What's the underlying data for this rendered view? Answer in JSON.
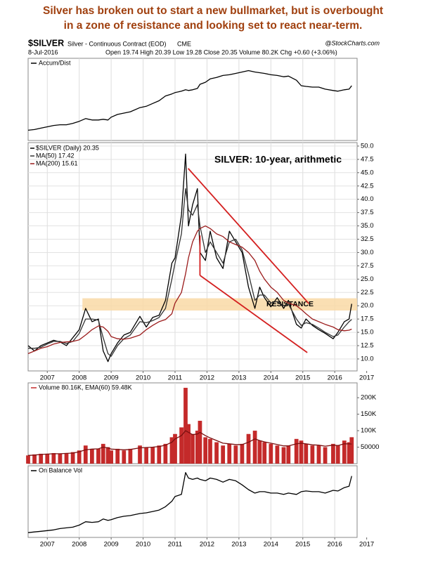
{
  "header": {
    "lines": [
      "Silver has broken out to start a new bullmarket, but is overbought",
      "in a zone of resistance and looking set to react near-term."
    ],
    "symbol": "$SILVER",
    "description": "Silver - Continuous Contract (EOD)",
    "exchange": "CME",
    "source": "@StockCharts.com",
    "date": "8-Jul-2016",
    "quote": "Open 19.74 High 20.39 Low 19.28 Close 20.35 Volume 80.2K Chg +0.60 (+3.06%)"
  },
  "chart_data": [
    {
      "type": "line",
      "label": "Accum/Dist",
      "xlim": [
        2006.4,
        2016.7
      ],
      "ylim": [
        -10,
        110
      ],
      "x": [
        2006.4,
        2006.6,
        2006.8,
        2007.0,
        2007.2,
        2007.4,
        2007.6,
        2007.8,
        2008.0,
        2008.2,
        2008.4,
        2008.6,
        2008.75,
        2008.9,
        2009.0,
        2009.2,
        2009.4,
        2009.6,
        2009.9,
        2010.1,
        2010.3,
        2010.5,
        2010.7,
        2010.9,
        2011.0,
        2011.2,
        2011.33,
        2011.42,
        2011.55,
        2011.7,
        2011.78,
        2011.95,
        2012.1,
        2012.3,
        2012.5,
        2012.7,
        2012.9,
        2013.1,
        2013.3,
        2013.5,
        2013.65,
        2013.8,
        2014.0,
        2014.2,
        2014.4,
        2014.55,
        2014.8,
        2014.95,
        2015.1,
        2015.3,
        2015.5,
        2015.7,
        2015.95,
        2016.1,
        2016.3,
        2016.45,
        2016.53
      ],
      "series": [
        {
          "color": "#000000",
          "values": [
            5,
            6,
            8,
            10,
            12,
            13,
            13,
            15,
            18,
            22,
            20,
            20,
            21,
            20,
            24,
            28,
            30,
            32,
            38,
            40,
            44,
            48,
            55,
            58,
            60,
            62,
            64,
            63,
            64,
            66,
            72,
            75,
            80,
            82,
            85,
            86,
            88,
            90,
            92,
            90,
            89,
            88,
            86,
            85,
            83,
            84,
            78,
            70,
            69,
            68,
            68,
            65,
            63,
            62,
            64,
            65,
            70
          ]
        }
      ]
    },
    {
      "type": "line",
      "subtitle": "SILVER: 10-year, arithmetic",
      "xlim": [
        2006.4,
        2016.7
      ],
      "ylim": [
        7.75,
        50.65
      ],
      "grid": true,
      "xticks": [
        2007,
        2008,
        2009,
        2010,
        2011,
        2012,
        2013,
        2014,
        2015,
        2016,
        2017
      ],
      "yticks": [
        {
          "value": 10,
          "label": "10.0"
        },
        12.5,
        {
          "value": 15,
          "label": "15.0"
        },
        17.5,
        {
          "value": 20,
          "label": "20.0"
        },
        22.5,
        {
          "value": 25,
          "label": "25.0"
        },
        27.5,
        {
          "value": 30,
          "label": "30.0"
        },
        32.5,
        {
          "value": 35,
          "label": "35.0"
        },
        37.5,
        {
          "value": 40,
          "label": "40.0"
        },
        42.5,
        {
          "value": 45,
          "label": "45.0"
        },
        47.5,
        {
          "value": 50,
          "label": "50.0"
        }
      ],
      "x": [
        2006.4,
        2006.6,
        2006.8,
        2007.0,
        2007.2,
        2007.4,
        2007.6,
        2007.8,
        2008.0,
        2008.2,
        2008.4,
        2008.6,
        2008.75,
        2008.9,
        2009.0,
        2009.2,
        2009.4,
        2009.6,
        2009.9,
        2010.1,
        2010.3,
        2010.5,
        2010.7,
        2010.9,
        2011.0,
        2011.2,
        2011.33,
        2011.42,
        2011.55,
        2011.7,
        2011.78,
        2011.95,
        2012.1,
        2012.3,
        2012.5,
        2012.7,
        2012.9,
        2013.1,
        2013.3,
        2013.5,
        2013.65,
        2013.8,
        2014.0,
        2014.2,
        2014.4,
        2014.55,
        2014.8,
        2014.95,
        2015.1,
        2015.3,
        2015.5,
        2015.7,
        2015.95,
        2016.1,
        2016.3,
        2016.45,
        2016.53
      ],
      "series": [
        {
          "name": "$SILVER (Daily) 20.35",
          "color": "#000000",
          "values": [
            12.5,
            11.5,
            12.5,
            13.0,
            13.5,
            13.2,
            12.5,
            14.0,
            15.5,
            19.5,
            17.0,
            17.5,
            11.5,
            9.5,
            11.0,
            13.0,
            14.5,
            15.0,
            18.0,
            16.0,
            17.8,
            18.2,
            21.0,
            28.0,
            29.0,
            37.0,
            48.5,
            35.0,
            39.0,
            42.0,
            30.0,
            28.5,
            34.0,
            29.0,
            27.0,
            34.0,
            32.0,
            30.0,
            23.5,
            19.5,
            23.5,
            21.5,
            19.8,
            21.5,
            19.5,
            21.0,
            16.5,
            15.8,
            17.5,
            16.3,
            15.5,
            14.8,
            13.8,
            15.0,
            17.0,
            17.5,
            20.35
          ]
        },
        {
          "name": "MA(50) 17.42",
          "color": "#333333",
          "values": [
            12,
            12,
            12.2,
            12.8,
            13.3,
            13.3,
            12.9,
            13.3,
            14.8,
            17.5,
            17.5,
            17.3,
            14,
            11,
            10.5,
            12.5,
            13.8,
            14.5,
            17,
            16.8,
            17.2,
            17.8,
            19.5,
            25,
            28,
            33.5,
            42,
            38,
            37,
            39,
            35,
            30,
            32,
            30,
            28,
            32,
            32.5,
            30.5,
            26,
            21,
            22,
            22,
            20.5,
            20.8,
            20,
            20.3,
            17.5,
            16.3,
            16.8,
            16.5,
            15.8,
            15,
            14.2,
            14.5,
            16,
            17,
            17.42
          ]
        },
        {
          "name": "MA(200) 15.61",
          "color": "#9b1c1c",
          "values": [
            11,
            11.5,
            12,
            12.3,
            12.8,
            13.1,
            13.2,
            13.3,
            13.6,
            14.5,
            15.5,
            16.2,
            16.0,
            15.2,
            14.2,
            13.8,
            13.7,
            13.9,
            14.5,
            15.5,
            16.3,
            17.0,
            17.4,
            18.5,
            20.5,
            22.5,
            26.0,
            29.0,
            32,
            34,
            34.5,
            35,
            34.5,
            33.5,
            33,
            32,
            31.5,
            31,
            30,
            28.5,
            26.5,
            25,
            23.5,
            22.5,
            21,
            20.5,
            20,
            19.3,
            18.5,
            17.5,
            17,
            16.5,
            16,
            15.5,
            15.3,
            15.4,
            15.61
          ]
        }
      ],
      "band": {
        "x": [
          2008.1,
          2016.7
        ],
        "y": [
          19.1,
          21.4
        ],
        "label": "RESISTANCE",
        "color": "#f9d9a6"
      },
      "trendlines": {
        "color": "#d42020",
        "lines": [
          {
            "x": [
              2011.41,
              2015.19
            ],
            "y": [
              45.8,
              20.4
            ]
          },
          {
            "x": [
              2011.78,
              2015.14
            ],
            "y": [
              25.7,
              11.2
            ]
          },
          {
            "x": [
              2011.78,
              2011.78
            ],
            "y": [
              33.2,
              25.7
            ]
          }
        ]
      }
    },
    {
      "type": "bar",
      "label": "Volume 80.16K, EMA(60) 59.48K",
      "xlim": [
        2006.4,
        2016.7
      ],
      "ylim": [
        0,
        245000
      ],
      "yticks": [
        50000,
        {
          "value": 100000,
          "label": "100K"
        },
        {
          "value": 150000,
          "label": "150K"
        },
        {
          "value": 200000,
          "label": "200K"
        }
      ],
      "x": [
        2006.4,
        2006.6,
        2006.8,
        2007.0,
        2007.2,
        2007.4,
        2007.6,
        2007.8,
        2008.0,
        2008.2,
        2008.4,
        2008.6,
        2008.75,
        2008.9,
        2009.0,
        2009.2,
        2009.4,
        2009.6,
        2009.9,
        2010.1,
        2010.3,
        2010.5,
        2010.7,
        2010.9,
        2011.0,
        2011.2,
        2011.33,
        2011.42,
        2011.55,
        2011.7,
        2011.78,
        2011.95,
        2012.1,
        2012.3,
        2012.5,
        2012.7,
        2012.9,
        2013.1,
        2013.3,
        2013.5,
        2013.65,
        2013.8,
        2014.0,
        2014.2,
        2014.4,
        2014.55,
        2014.8,
        2014.95,
        2015.1,
        2015.3,
        2015.5,
        2015.7,
        2015.95,
        2016.1,
        2016.3,
        2016.45,
        2016.53
      ],
      "series": [
        {
          "type": "bar",
          "color": "#c42a2a",
          "values": [
            25000,
            28000,
            30000,
            30000,
            32000,
            30000,
            32000,
            35000,
            40000,
            55000,
            45000,
            45000,
            60000,
            50000,
            40000,
            45000,
            40000,
            45000,
            55000,
            50000,
            50000,
            55000,
            60000,
            80000,
            90000,
            110000,
            230000,
            120000,
            90000,
            100000,
            130000,
            80000,
            75000,
            65000,
            55000,
            60000,
            55000,
            60000,
            90000,
            100000,
            70000,
            65000,
            60000,
            55000,
            50000,
            55000,
            75000,
            70000,
            60000,
            55000,
            55000,
            50000,
            60000,
            55000,
            70000,
            65000,
            80160
          ]
        },
        {
          "type": "line",
          "color": "#7a1010",
          "values": [
            25000,
            26000,
            28000,
            29000,
            30000,
            30000,
            31000,
            32000,
            36000,
            42000,
            44000,
            45000,
            50000,
            48000,
            44000,
            43000,
            42000,
            43000,
            48000,
            49000,
            50000,
            52000,
            56000,
            65000,
            75000,
            85000,
            100000,
            95000,
            88000,
            90000,
            95000,
            85000,
            78000,
            70000,
            62000,
            60000,
            58000,
            58000,
            65000,
            75000,
            70000,
            66000,
            62000,
            58000,
            54000,
            54000,
            60000,
            62000,
            60000,
            57000,
            56000,
            53000,
            56000,
            55000,
            60000,
            60000,
            59480
          ]
        }
      ]
    },
    {
      "type": "line",
      "label": "On Balance Vol",
      "xlim": [
        2006.4,
        2016.7
      ],
      "ylim": [
        -5,
        100
      ],
      "xticks": [
        2007,
        2008,
        2009,
        2010,
        2011,
        2012,
        2013,
        2014,
        2015,
        2016,
        2017
      ],
      "x": [
        2006.4,
        2006.6,
        2006.8,
        2007.0,
        2007.2,
        2007.4,
        2007.6,
        2007.8,
        2008.0,
        2008.2,
        2008.4,
        2008.6,
        2008.75,
        2008.9,
        2009.0,
        2009.2,
        2009.4,
        2009.6,
        2009.9,
        2010.1,
        2010.3,
        2010.5,
        2010.7,
        2010.9,
        2011.0,
        2011.2,
        2011.33,
        2011.42,
        2011.55,
        2011.7,
        2011.78,
        2011.95,
        2012.1,
        2012.3,
        2012.5,
        2012.7,
        2012.9,
        2013.1,
        2013.3,
        2013.5,
        2013.65,
        2013.8,
        2014.0,
        2014.2,
        2014.4,
        2014.55,
        2014.8,
        2014.95,
        2015.1,
        2015.3,
        2015.5,
        2015.7,
        2015.95,
        2016.1,
        2016.3,
        2016.45,
        2016.53
      ],
      "series": [
        {
          "color": "#000000",
          "values": [
            2,
            3,
            4,
            5,
            6,
            8,
            9,
            10,
            13,
            18,
            17,
            18,
            22,
            20,
            21,
            24,
            26,
            27,
            30,
            31,
            33,
            35,
            40,
            48,
            55,
            58,
            90,
            82,
            80,
            82,
            80,
            78,
            82,
            80,
            76,
            80,
            78,
            72,
            65,
            60,
            62,
            62,
            60,
            60,
            58,
            60,
            58,
            62,
            63,
            62,
            62,
            60,
            64,
            63,
            68,
            70,
            85
          ]
        }
      ]
    }
  ]
}
